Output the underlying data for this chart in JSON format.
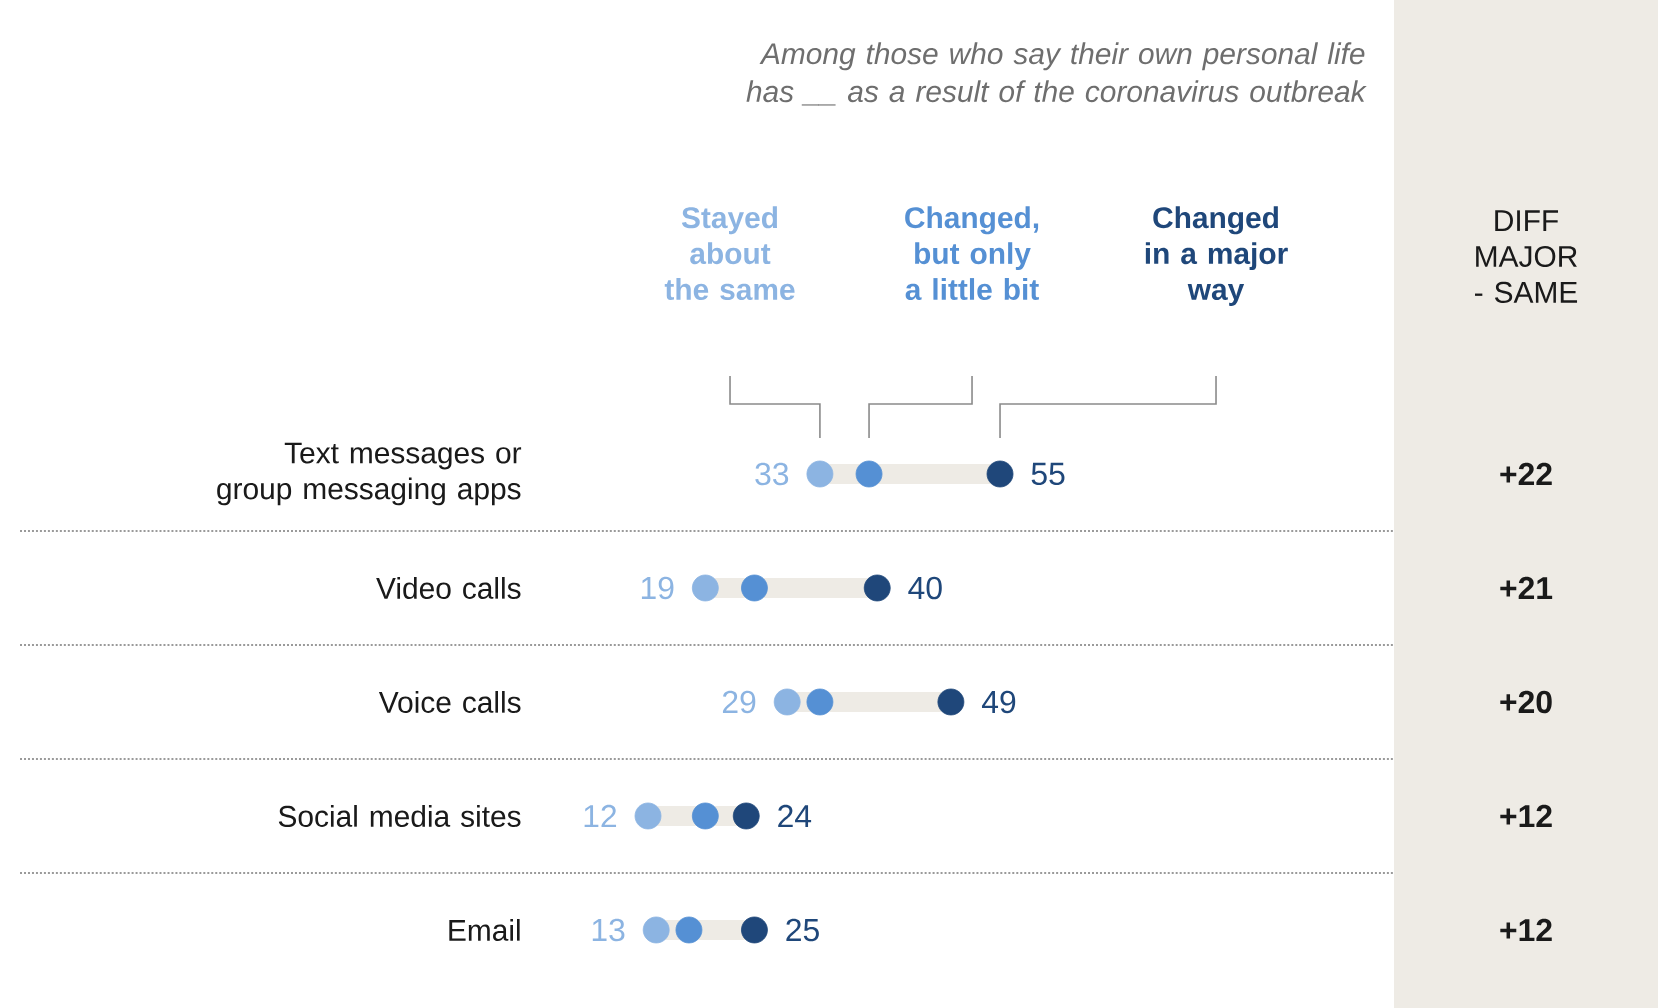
{
  "chart_data": {
    "type": "scatter",
    "orientation": "horizontal",
    "marker": "circle",
    "legend": "top",
    "subtitle": "Among those who say their own personal life has __ as a result of the coronavirus outbreak",
    "annotations": [
      "DIFF MAJOR - SAME",
      "+22",
      "+21",
      "+20",
      "+12",
      "+12"
    ],
    "categories": [
      "Text messages or group messaging apps",
      "Video calls",
      "Voice calls",
      "Social media sites",
      "Email"
    ],
    "series": [
      {
        "name": "Stayed about the same",
        "color": "#8cb4e2",
        "values": [
          33,
          19,
          29,
          12,
          13
        ],
        "value_labels": [
          "33",
          "19",
          "29",
          "12",
          "13"
        ]
      },
      {
        "name": "Changed, but only a little bit",
        "color": "#5590d4",
        "values": [
          39,
          25,
          33,
          19,
          17
        ]
      },
      {
        "name": "Changed in a major way",
        "color": "#1f477a",
        "values": [
          55,
          40,
          49,
          24,
          25
        ],
        "value_labels": [
          "55",
          "40",
          "49",
          "24",
          "25"
        ]
      }
    ]
  }
}
